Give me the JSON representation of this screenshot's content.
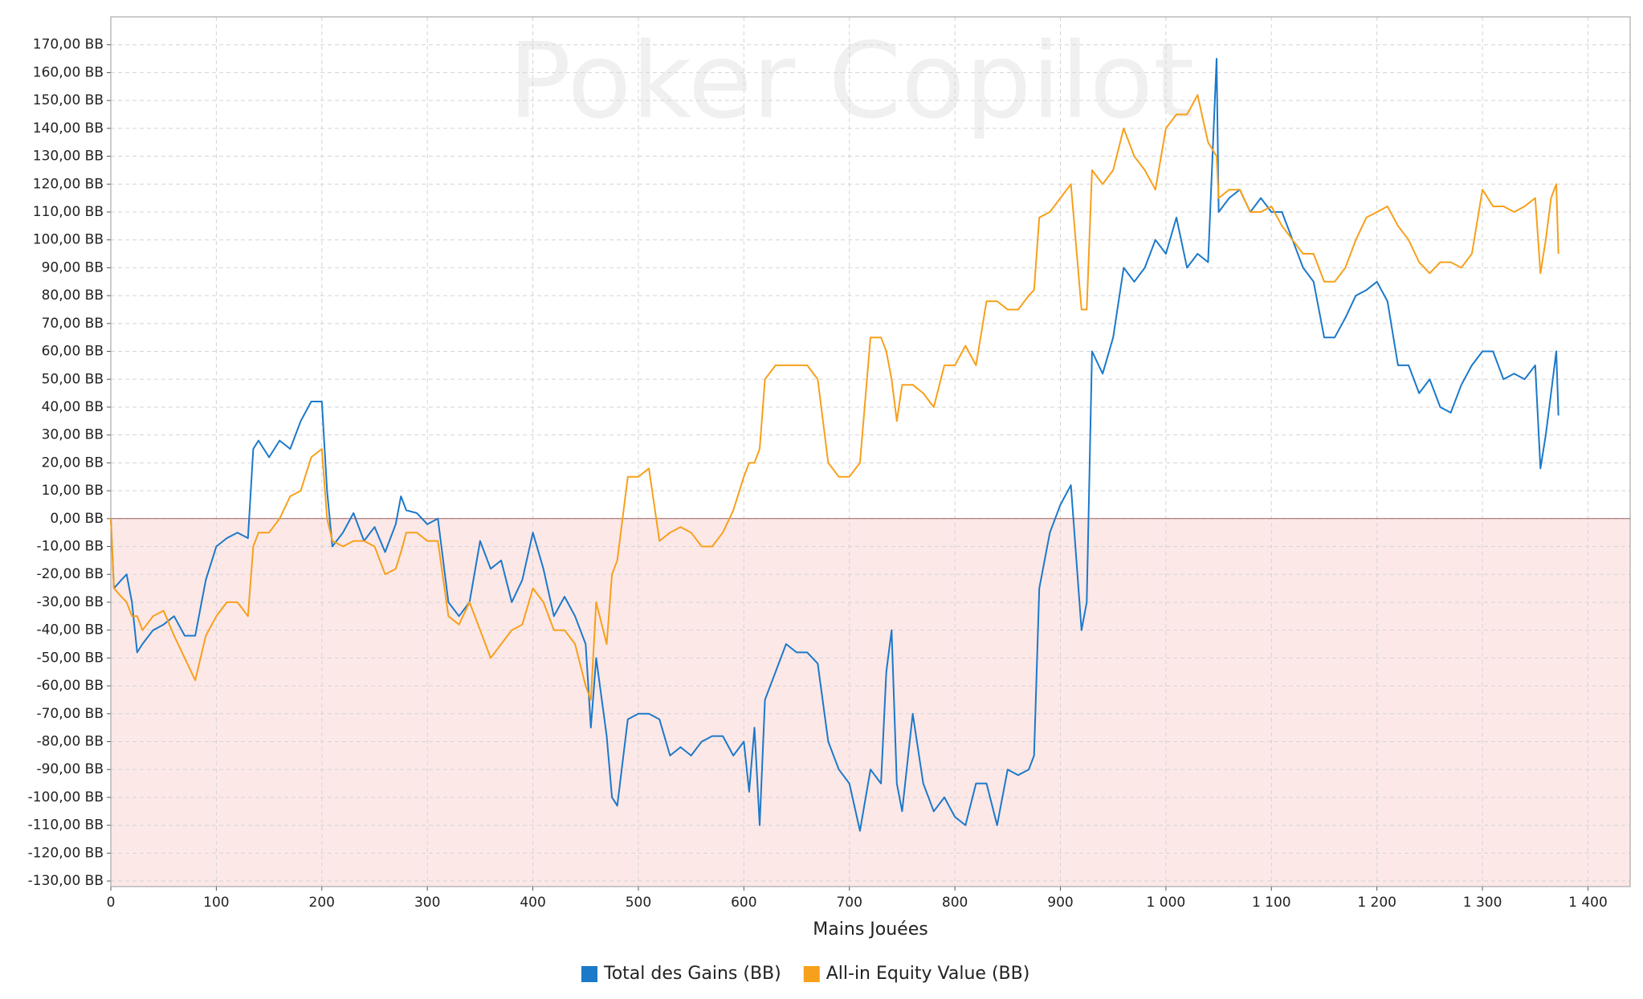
{
  "chart_data": {
    "type": "line",
    "watermark": "Poker Copilot",
    "x_label": "Mains Jouées",
    "xlim": [
      0,
      1440
    ],
    "ylim": [
      -132,
      180
    ],
    "grid": true,
    "negative_shading": "#fde8e8",
    "legend": "bottom",
    "xticks": [
      0,
      100,
      200,
      300,
      400,
      500,
      600,
      700,
      800,
      900,
      {
        "value": 1000,
        "label": "1 000"
      },
      {
        "value": 1100,
        "label": "1 100"
      },
      {
        "value": 1200,
        "label": "1 200"
      },
      {
        "value": 1300,
        "label": "1 300"
      },
      {
        "value": 1400,
        "label": "1 400"
      }
    ],
    "yticks": [
      {
        "value": 170,
        "label": "170,00 BB"
      },
      {
        "value": 160,
        "label": "160,00 BB"
      },
      {
        "value": 150,
        "label": "150,00 BB"
      },
      {
        "value": 140,
        "label": "140,00 BB"
      },
      {
        "value": 130,
        "label": "130,00 BB"
      },
      {
        "value": 120,
        "label": "120,00 BB"
      },
      {
        "value": 110,
        "label": "110,00 BB"
      },
      {
        "value": 100,
        "label": "100,00 BB"
      },
      {
        "value": 90,
        "label": "90,00 BB"
      },
      {
        "value": 80,
        "label": "80,00 BB"
      },
      {
        "value": 70,
        "label": "70,00 BB"
      },
      {
        "value": 60,
        "label": "60,00 BB"
      },
      {
        "value": 50,
        "label": "50,00 BB"
      },
      {
        "value": 40,
        "label": "40,00 BB"
      },
      {
        "value": 30,
        "label": "30,00 BB"
      },
      {
        "value": 20,
        "label": "20,00 BB"
      },
      {
        "value": 10,
        "label": "10,00 BB"
      },
      {
        "value": 0,
        "label": "0,00 BB"
      },
      {
        "value": -10,
        "label": "-10,00 BB"
      },
      {
        "value": -20,
        "label": "-20,00 BB"
      },
      {
        "value": -30,
        "label": "-30,00 BB"
      },
      {
        "value": -40,
        "label": "-40,00 BB"
      },
      {
        "value": -50,
        "label": "-50,00 BB"
      },
      {
        "value": -60,
        "label": "-60,00 BB"
      },
      {
        "value": -70,
        "label": "-70,00 BB"
      },
      {
        "value": -80,
        "label": "-80,00 BB"
      },
      {
        "value": -90,
        "label": "-90,00 BB"
      },
      {
        "value": -100,
        "label": "-100,00 BB"
      },
      {
        "value": -110,
        "label": "-110,00 BB"
      },
      {
        "value": -120,
        "label": "-120,00 BB"
      },
      {
        "value": -130,
        "label": "-130,00 BB"
      }
    ],
    "x": [
      0,
      3,
      10,
      15,
      20,
      25,
      30,
      40,
      50,
      60,
      70,
      80,
      90,
      100,
      110,
      120,
      130,
      135,
      140,
      150,
      160,
      170,
      180,
      190,
      200,
      205,
      210,
      220,
      230,
      240,
      250,
      260,
      270,
      275,
      280,
      290,
      300,
      310,
      320,
      330,
      340,
      350,
      360,
      370,
      380,
      390,
      400,
      410,
      420,
      430,
      440,
      450,
      455,
      460,
      470,
      475,
      480,
      490,
      500,
      510,
      520,
      530,
      540,
      550,
      560,
      570,
      580,
      590,
      600,
      605,
      610,
      615,
      620,
      630,
      640,
      650,
      660,
      670,
      680,
      690,
      700,
      710,
      720,
      730,
      735,
      740,
      745,
      750,
      760,
      770,
      780,
      790,
      800,
      810,
      820,
      830,
      840,
      850,
      860,
      870,
      875,
      880,
      890,
      900,
      910,
      920,
      925,
      930,
      940,
      950,
      960,
      970,
      980,
      990,
      1000,
      1010,
      1020,
      1030,
      1040,
      1048,
      1050,
      1060,
      1070,
      1080,
      1090,
      1100,
      1110,
      1120,
      1130,
      1140,
      1150,
      1160,
      1170,
      1180,
      1190,
      1200,
      1210,
      1220,
      1230,
      1240,
      1250,
      1260,
      1270,
      1280,
      1290,
      1300,
      1310,
      1320,
      1330,
      1340,
      1350,
      1355,
      1360,
      1365,
      1370,
      1372
    ],
    "series": [
      {
        "name": "Total des Gains (BB)",
        "color": "#1b79c9",
        "values": [
          0,
          -25,
          -22,
          -20,
          -30,
          -48,
          -45,
          -40,
          -38,
          -35,
          -42,
          -42,
          -22,
          -10,
          -7,
          -5,
          -7,
          25,
          28,
          22,
          28,
          25,
          35,
          42,
          42,
          10,
          -10,
          -5,
          2,
          -8,
          -3,
          -12,
          -2,
          8,
          3,
          2,
          -2,
          0,
          -30,
          -35,
          -30,
          -8,
          -18,
          -15,
          -30,
          -22,
          -5,
          -18,
          -35,
          -28,
          -35,
          -45,
          -75,
          -50,
          -78,
          -100,
          -103,
          -72,
          -70,
          -70,
          -72,
          -85,
          -82,
          -85,
          -80,
          -78,
          -78,
          -85,
          -80,
          -98,
          -75,
          -110,
          -65,
          -55,
          -45,
          -48,
          -48,
          -52,
          -80,
          -90,
          -95,
          -112,
          -90,
          -95,
          -55,
          -40,
          -95,
          -105,
          -70,
          -95,
          -105,
          -100,
          -107,
          -110,
          -95,
          -95,
          -110,
          -90,
          -92,
          -90,
          -85,
          -25,
          -5,
          5,
          12,
          -40,
          -30,
          60,
          52,
          65,
          90,
          85,
          90,
          100,
          95,
          108,
          90,
          95,
          92,
          165,
          110,
          115,
          118,
          110,
          115,
          110,
          110,
          100,
          90,
          85,
          65,
          65,
          72,
          80,
          82,
          85,
          78,
          55,
          55,
          45,
          50,
          40,
          38,
          48,
          55,
          60,
          60,
          50,
          52,
          50,
          55,
          18,
          30,
          45,
          60,
          37
        ]
      },
      {
        "name": "All-in Equity Value (BB)",
        "color": "#f7a01b",
        "values": [
          0,
          -25,
          -28,
          -30,
          -35,
          -35,
          -40,
          -35,
          -33,
          -42,
          -50,
          -58,
          -42,
          -35,
          -30,
          -30,
          -35,
          -10,
          -5,
          -5,
          0,
          8,
          10,
          22,
          25,
          0,
          -8,
          -10,
          -8,
          -8,
          -10,
          -20,
          -18,
          -12,
          -5,
          -5,
          -8,
          -8,
          -35,
          -38,
          -30,
          -40,
          -50,
          -45,
          -40,
          -38,
          -25,
          -30,
          -40,
          -40,
          -45,
          -60,
          -65,
          -30,
          -45,
          -20,
          -15,
          15,
          15,
          18,
          -8,
          -5,
          -3,
          -5,
          -10,
          -10,
          -5,
          3,
          15,
          20,
          20,
          25,
          50,
          55,
          55,
          55,
          55,
          50,
          20,
          15,
          15,
          20,
          65,
          65,
          60,
          50,
          35,
          48,
          48,
          45,
          40,
          55,
          55,
          62,
          55,
          78,
          78,
          75,
          75,
          80,
          82,
          108,
          110,
          115,
          120,
          75,
          75,
          125,
          120,
          125,
          140,
          130,
          125,
          118,
          140,
          145,
          145,
          152,
          135,
          130,
          115,
          118,
          118,
          110,
          110,
          112,
          105,
          100,
          95,
          95,
          85,
          85,
          90,
          100,
          108,
          110,
          112,
          105,
          100,
          92,
          88,
          92,
          92,
          90,
          95,
          118,
          112,
          112,
          110,
          112,
          115,
          88,
          100,
          115,
          120,
          95
        ]
      }
    ]
  }
}
